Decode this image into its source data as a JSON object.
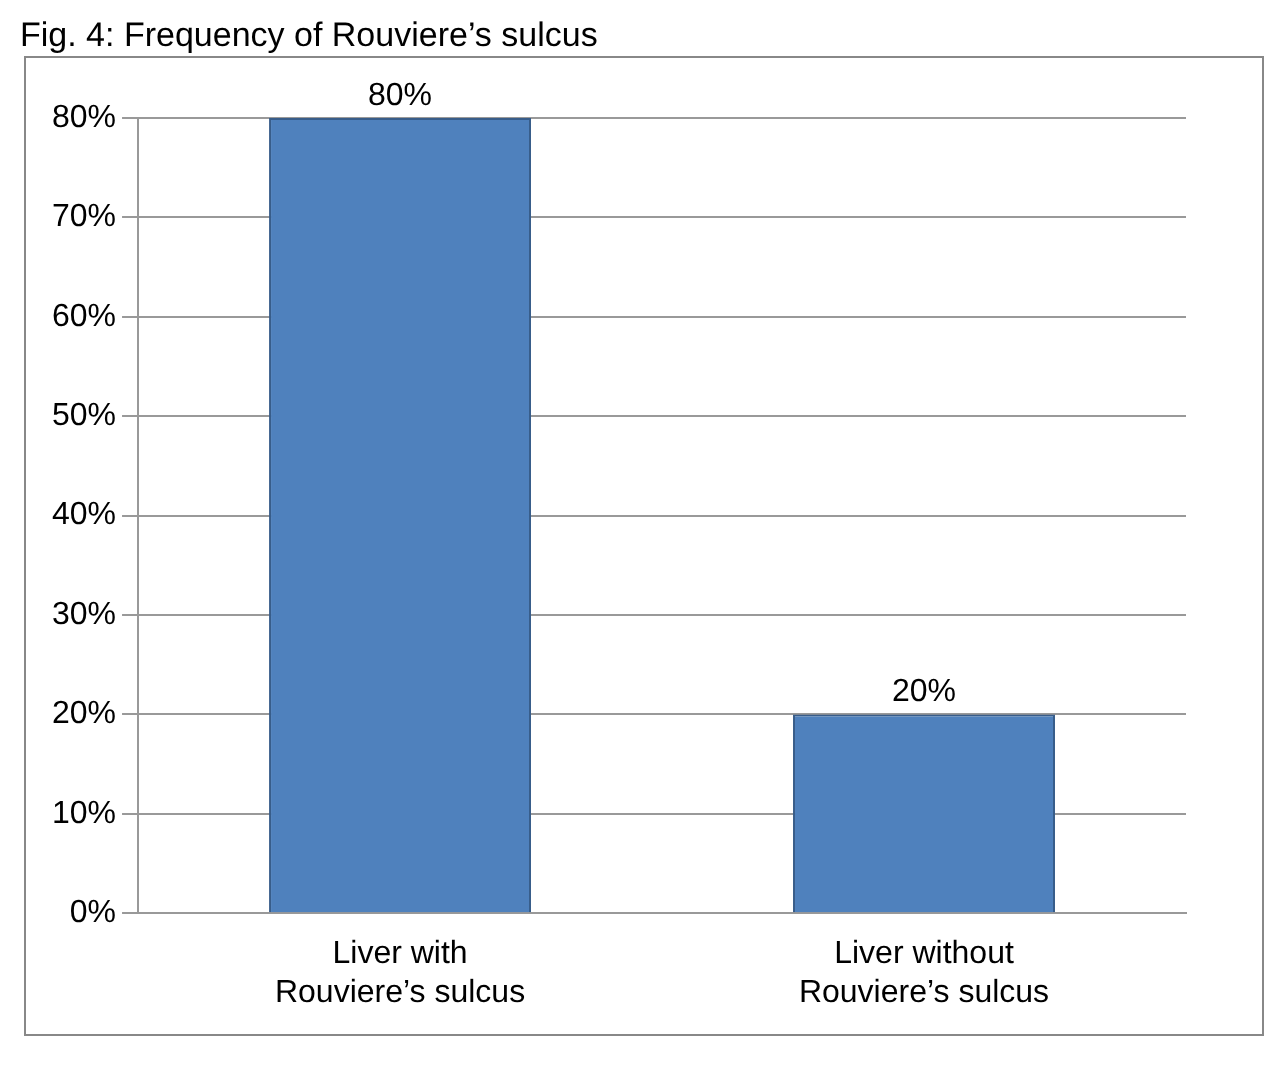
{
  "chart_data": {
    "type": "bar",
    "title": "Fig. 4: Frequency of Rouviere’s sulcus",
    "categories": [
      "Liver with Rouviere’s sulcus",
      "Liver without Rouviere’s sulcus"
    ],
    "values": [
      80,
      20
    ],
    "color": "#4f81bd",
    "value_labels": [
      "80%",
      "20%"
    ],
    "ylim": [
      0,
      80
    ],
    "yticks": [
      {
        "value": 0,
        "label": "0%"
      },
      {
        "value": 10,
        "label": "10%"
      },
      {
        "value": 20,
        "label": "20%"
      },
      {
        "value": 30,
        "label": "30%"
      },
      {
        "value": 40,
        "label": "40%"
      },
      {
        "value": 50,
        "label": "50%"
      },
      {
        "value": 60,
        "label": "60%"
      },
      {
        "value": 70,
        "label": "70%"
      },
      {
        "value": 80,
        "label": "80%"
      }
    ],
    "grid": "y",
    "legend": false
  }
}
